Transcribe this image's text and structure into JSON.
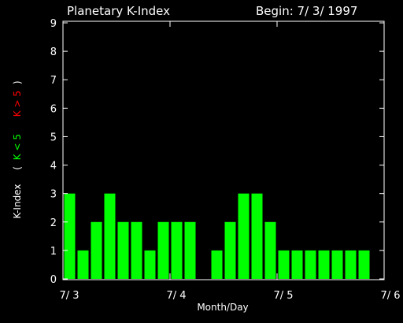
{
  "chart_data": {
    "type": "bar",
    "title": "Planetary K-Index",
    "subtitle": "Begin: 7/ 3/ 1997",
    "x_label": "Month/Day",
    "y_label": {
      "text": "K-Index",
      "open": "(",
      "low": "K < 5",
      "high": "K > 5",
      "close": ")",
      "low_color": "#00ff00",
      "high_color": "#ff0000"
    },
    "values": [
      3,
      1,
      2,
      3,
      2,
      2,
      1,
      2,
      2,
      2,
      0,
      1,
      2,
      3,
      3,
      2,
      1,
      1,
      1,
      1,
      1,
      1,
      1,
      null
    ],
    "color": "#00ff00",
    "xlim": [
      0,
      24
    ],
    "xticks": [
      {
        "value": 0,
        "label": "7/ 3"
      },
      {
        "value": 8,
        "label": "7/ 4"
      },
      {
        "value": 16,
        "label": "7/ 5"
      },
      {
        "value": 24,
        "label": "7/ 6"
      }
    ],
    "ylim": [
      0,
      9
    ],
    "yticks": [
      0,
      1,
      2,
      3,
      4,
      5,
      6,
      7,
      8,
      9
    ]
  }
}
